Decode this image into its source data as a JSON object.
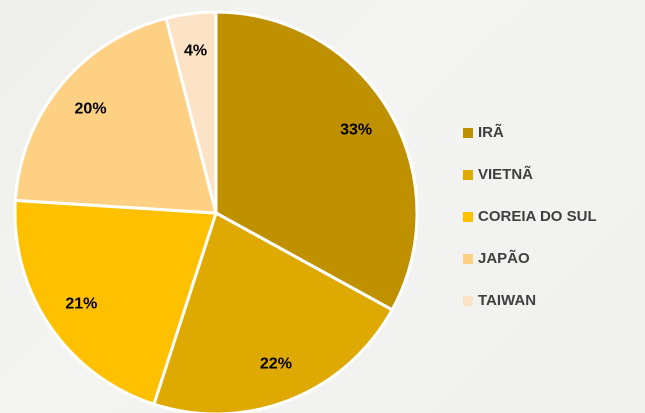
{
  "chart_data": {
    "type": "pie",
    "categories": [
      "IRÃ",
      "VIETNÃ",
      "COREIA DO SUL",
      "JAPÃO",
      "TAIWAN"
    ],
    "values": [
      33,
      22,
      21,
      20,
      4
    ],
    "value_labels": [
      "33%",
      "22%",
      "21%",
      "20%",
      "4%"
    ],
    "colors": [
      "#bf9000",
      "#dea900",
      "#ffc000",
      "#fed084",
      "#fde3c6"
    ],
    "legend": "right"
  }
}
